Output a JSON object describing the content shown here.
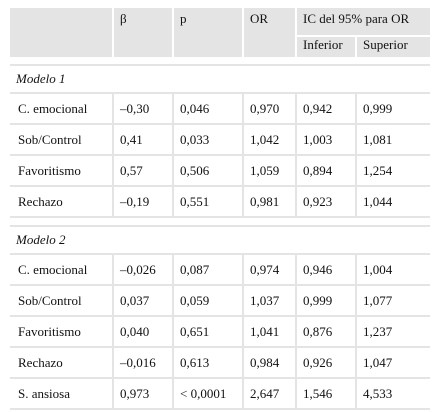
{
  "table": {
    "header": {
      "columns": [
        "β",
        "p",
        "OR"
      ],
      "ci": "IC del 95% para OR",
      "ci_sub": [
        "Inferior",
        "Superior"
      ]
    },
    "groups": [
      {
        "label": "Modelo 1",
        "rows": [
          [
            "C. emocional",
            "–0,30",
            "0,046",
            "0,970",
            "0,942",
            "0,999"
          ],
          [
            "Sob/Control",
            "0,41",
            "0,033",
            "1,042",
            "1,003",
            "1,081"
          ],
          [
            "Favoritismo",
            "0,57",
            "0,506",
            "1,059",
            "0,894",
            "1,254"
          ],
          [
            "Rechazo",
            "–0,19",
            "0,551",
            "0,981",
            "0,923",
            "1,044"
          ]
        ]
      },
      {
        "label": "Modelo 2",
        "rows": [
          [
            "C. emocional",
            "–0,026",
            "0,087",
            "0,974",
            "0,946",
            "1,004"
          ],
          [
            "Sob/Control",
            "0,037",
            "0,059",
            "1,037",
            "0,999",
            "1,077"
          ],
          [
            "Favoritismo",
            "0,040",
            "0,651",
            "1,041",
            "0,876",
            "1,237"
          ],
          [
            "Rechazo",
            "–0,016",
            "0,613",
            "0,984",
            "0,926",
            "1,047"
          ],
          [
            "S. ansiosa",
            "0,973",
            "< 0,0001",
            "2,647",
            "1,546",
            "4,533"
          ]
        ]
      }
    ]
  }
}
